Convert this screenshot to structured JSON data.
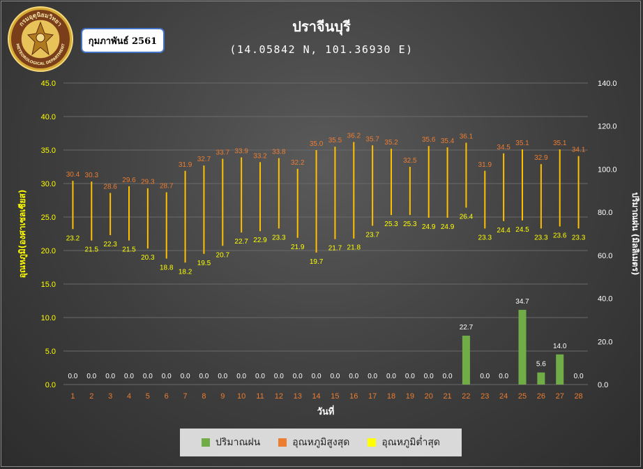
{
  "header": {
    "title": "ปราจีนบุรี",
    "subtitle": "(14.05842 N, 101.36930 E)",
    "month": "กุมภาพันธ์ 2561",
    "logo_text_top": "กรมอุตุนิยมวิทยา",
    "logo_text_bottom": "METEOROLOGICAL DEPARTMENT"
  },
  "colors": {
    "rain": "#70ad47",
    "tmax": "#ed7d31",
    "tmin": "#ffff00",
    "line": "#ffc000",
    "day_label": "#ed7d31",
    "left_axis": "#ffff00",
    "right_axis": "#ffffff",
    "grid": "#6a6a6a"
  },
  "chart_data": {
    "type": "bar",
    "x": [
      1,
      2,
      3,
      4,
      5,
      6,
      7,
      8,
      9,
      10,
      11,
      12,
      13,
      14,
      15,
      16,
      17,
      18,
      19,
      20,
      21,
      22,
      23,
      24,
      25,
      26,
      27,
      28
    ],
    "xlabel": "วันที่",
    "ylabel_left": "อุณหภูมิ(องศาเซลเซียส)",
    "ylabel_right": "ปริมาณฝน (มิลลิเมตร)",
    "ylim_left": [
      0,
      45
    ],
    "ylim_right": [
      0,
      140
    ],
    "yticks_left": [
      "0.0",
      "5.0",
      "10.0",
      "15.0",
      "20.0",
      "25.0",
      "30.0",
      "35.0",
      "40.0",
      "45.0"
    ],
    "yticks_right": [
      "0.0",
      "20.0",
      "40.0",
      "60.0",
      "80.0",
      "100.0",
      "120.0",
      "140.0"
    ],
    "grid": true,
    "legend_position": "bottom",
    "series": [
      {
        "name": "ปริมาณฝน",
        "kind": "bar",
        "axis": "right",
        "values": [
          0,
          0,
          0,
          0,
          0,
          0,
          0,
          0,
          0,
          0,
          0,
          0,
          0,
          0,
          0,
          0,
          0,
          0,
          0,
          0,
          0,
          22.7,
          0,
          0,
          34.7,
          5.6,
          14.0,
          0
        ]
      },
      {
        "name": "อุณหภูมิสูงสุด",
        "kind": "range-top",
        "axis": "left",
        "values": [
          30.4,
          30.3,
          28.6,
          29.6,
          29.3,
          28.7,
          31.9,
          32.7,
          33.7,
          33.9,
          33.2,
          33.8,
          32.2,
          35.0,
          35.5,
          36.2,
          35.7,
          35.2,
          32.5,
          35.6,
          35.4,
          36.1,
          31.9,
          34.5,
          35.1,
          32.9,
          35.1,
          34.1
        ]
      },
      {
        "name": "อุณหภูมิต่ำสุด",
        "kind": "range-bottom",
        "axis": "left",
        "values": [
          23.2,
          21.5,
          22.3,
          21.5,
          20.3,
          18.8,
          18.2,
          19.5,
          20.7,
          22.7,
          22.9,
          23.3,
          21.9,
          19.7,
          21.7,
          21.8,
          23.7,
          25.3,
          25.3,
          24.9,
          24.9,
          26.4,
          23.3,
          24.4,
          24.5,
          23.3,
          23.6,
          23.3
        ]
      }
    ]
  }
}
